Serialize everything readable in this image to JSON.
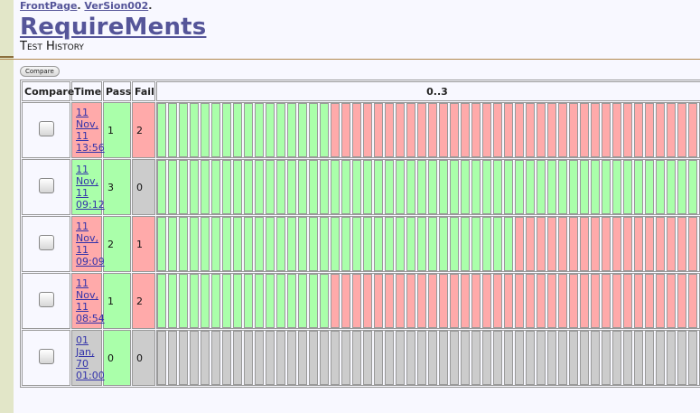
{
  "breadcrumb": {
    "front_page": "FrontPage",
    "version": "VerSion002"
  },
  "page": {
    "title": "RequireMents",
    "subtitle": "Test History"
  },
  "toolbar": {
    "compare_label": "Compare"
  },
  "table": {
    "headers": {
      "compare": "Compare",
      "time": "Time",
      "pass": "Pass",
      "fail": "Fail",
      "tests": "0..3"
    },
    "rows": [
      {
        "time": [
          "11",
          "Nov,",
          "11",
          "13:56"
        ],
        "pass": "1",
        "fail": "2",
        "status": "fail",
        "bars": "ppppppppppppppppfffffffffffffffffffffffffffffffffff"
      },
      {
        "time": [
          "11",
          "Nov,",
          "11",
          "09:12"
        ],
        "pass": "3",
        "fail": "0",
        "status": "pass",
        "bars": "ppppppppppppppppppppppppppppppppppppppppppppppppppp"
      },
      {
        "time": [
          "11",
          "Nov,",
          "11",
          "09:09"
        ],
        "pass": "2",
        "fail": "1",
        "status": "fail",
        "bars": "pppppppppppppppppppppppppppppppppfffffffffffffffffff"
      },
      {
        "time": [
          "11",
          "Nov,",
          "11",
          "08:54"
        ],
        "pass": "1",
        "fail": "2",
        "status": "fail",
        "bars": "ppppppppppppppppfffffffffffffffffffffffffffffffffff"
      },
      {
        "time": [
          "01",
          "Jan,",
          "70",
          "01:00"
        ],
        "pass": "0",
        "fail": "0",
        "status": "neutral",
        "bars": "nnnnnnnnnnnnnnnnnnnnnnnnnnnnnnnnnnnnnnnnnnnnnnnnnnn"
      }
    ]
  },
  "colors": {
    "pass": "#aaffaa",
    "fail": "#ffaaaa",
    "neutral": "#cccccc",
    "link": "#555599"
  }
}
